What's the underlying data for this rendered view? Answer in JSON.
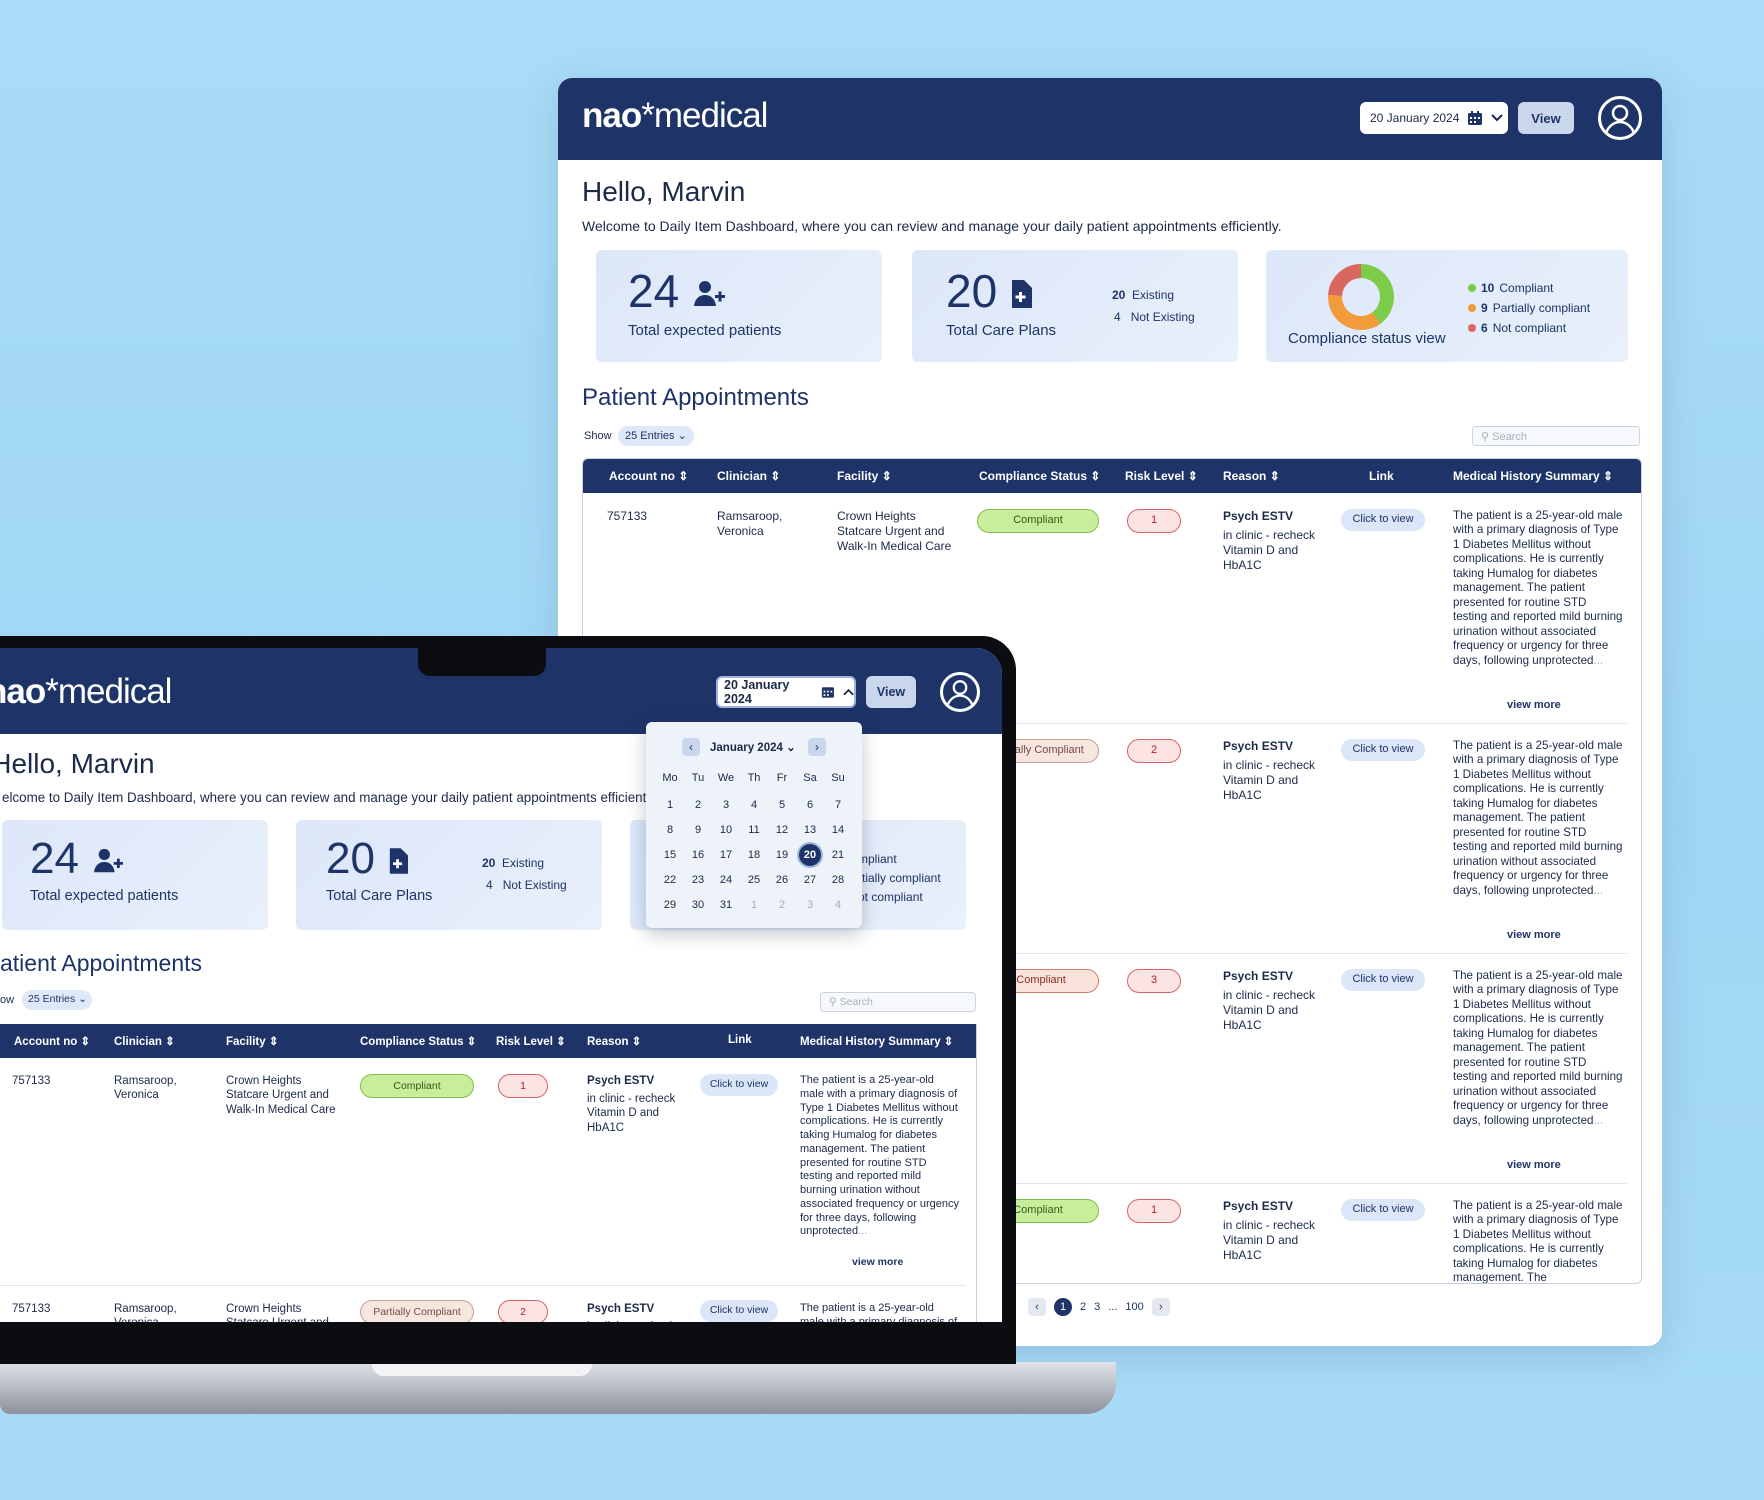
{
  "brand": {
    "name_left": "nao",
    "star": "*",
    "name_right": "medical"
  },
  "header": {
    "date": "20 January 2024",
    "view": "View"
  },
  "greeting": {
    "title": "Hello, Marvin",
    "subtitle": "Welcome to  Daily Item Dashboard, where you can review and manage your daily patient appointments efficiently."
  },
  "laptop_subtitle": "elcome to  Daily Item Dashboard, where you can review and manage your daily patient appointments efficiently.",
  "stats": {
    "patients": {
      "value": "24",
      "label": "Total expected patients"
    },
    "plans": {
      "value": "20",
      "label": "Total Care Plans",
      "existing_n": "20",
      "existing": "Existing",
      "not_n": "4",
      "not": "Not Existing"
    },
    "compliance": {
      "label": "Compliance status view",
      "items": [
        {
          "n": "10",
          "text": "Compliant",
          "color": "#7ccc4a"
        },
        {
          "n": "9",
          "text": "Partially compliant",
          "color": "#f29b3b"
        },
        {
          "n": "6",
          "text": "Not compliant",
          "color": "#d9675f"
        }
      ]
    }
  },
  "appointments": {
    "title": "Patient Appointments",
    "laptop_title": "atient Appointments",
    "show": "Show",
    "laptop_show": "ow",
    "entries": "25 Entries",
    "search": "Search"
  },
  "columns": [
    "Account no",
    "Clinician",
    "Facility",
    "Compliance Status",
    "Risk Level",
    "Reason",
    "Link",
    "Medical History Summary"
  ],
  "row": {
    "account": "757133",
    "clinician": "Ramsaroop, Veronica",
    "facility": "Crown Heights Statcare Urgent and Walk-In Medical Care",
    "reason_title": "Psych ESTV",
    "reason": "in clinic - recheck Vitamin D and HbA1C",
    "link": "Click to view",
    "summary": "The patient is a 25-year-old male with a primary diagnosis of Type 1 Diabetes Mellitus without complications. He is currently taking Humalog for diabetes management. The patient presented for routine STD testing and reported mild burning urination without associated frequency or urgency for three days, following unprotected",
    "summary_short": "The patient is a 25-year-old male with a primary diagnosis of Type 1 Diabetes Mellitus without complications. He is currently taking Humalog for diabetes management. The",
    "ellipsis": "...",
    "view_more": "view more"
  },
  "status": {
    "compliant": "Compliant",
    "partial": "Partially Compliant",
    "partial_cut": "ally Compliant",
    "not_cut": "t Compliant",
    "compliant_cut": "Compliant"
  },
  "risk": [
    "1",
    "2",
    "3",
    "1"
  ],
  "pagination": {
    "pages": [
      "1",
      "2",
      "3",
      "...",
      "100"
    ]
  },
  "calendar": {
    "month": "January 2024",
    "weekdays": [
      "Mo",
      "Tu",
      "We",
      "Th",
      "Fr",
      "Sa",
      "Su"
    ],
    "weeks": [
      [
        "1",
        "2",
        "3",
        "4",
        "5",
        "6",
        "7"
      ],
      [
        "8",
        "9",
        "10",
        "11",
        "12",
        "13",
        "14"
      ],
      [
        "15",
        "16",
        "17",
        "18",
        "19",
        "20",
        "21"
      ],
      [
        "22",
        "23",
        "24",
        "25",
        "26",
        "27",
        "28"
      ],
      [
        "29",
        "30",
        "31",
        "1",
        "2",
        "3",
        "4"
      ]
    ],
    "selected": "20"
  },
  "laptop_legend": [
    "mpliant",
    "rtially compliant",
    "ot compliant"
  ],
  "donut": [
    {
      "value": 10,
      "color": "#7ccc4a"
    },
    {
      "value": 9,
      "color": "#f29b3b"
    },
    {
      "value": 6,
      "color": "#d9675f"
    }
  ]
}
